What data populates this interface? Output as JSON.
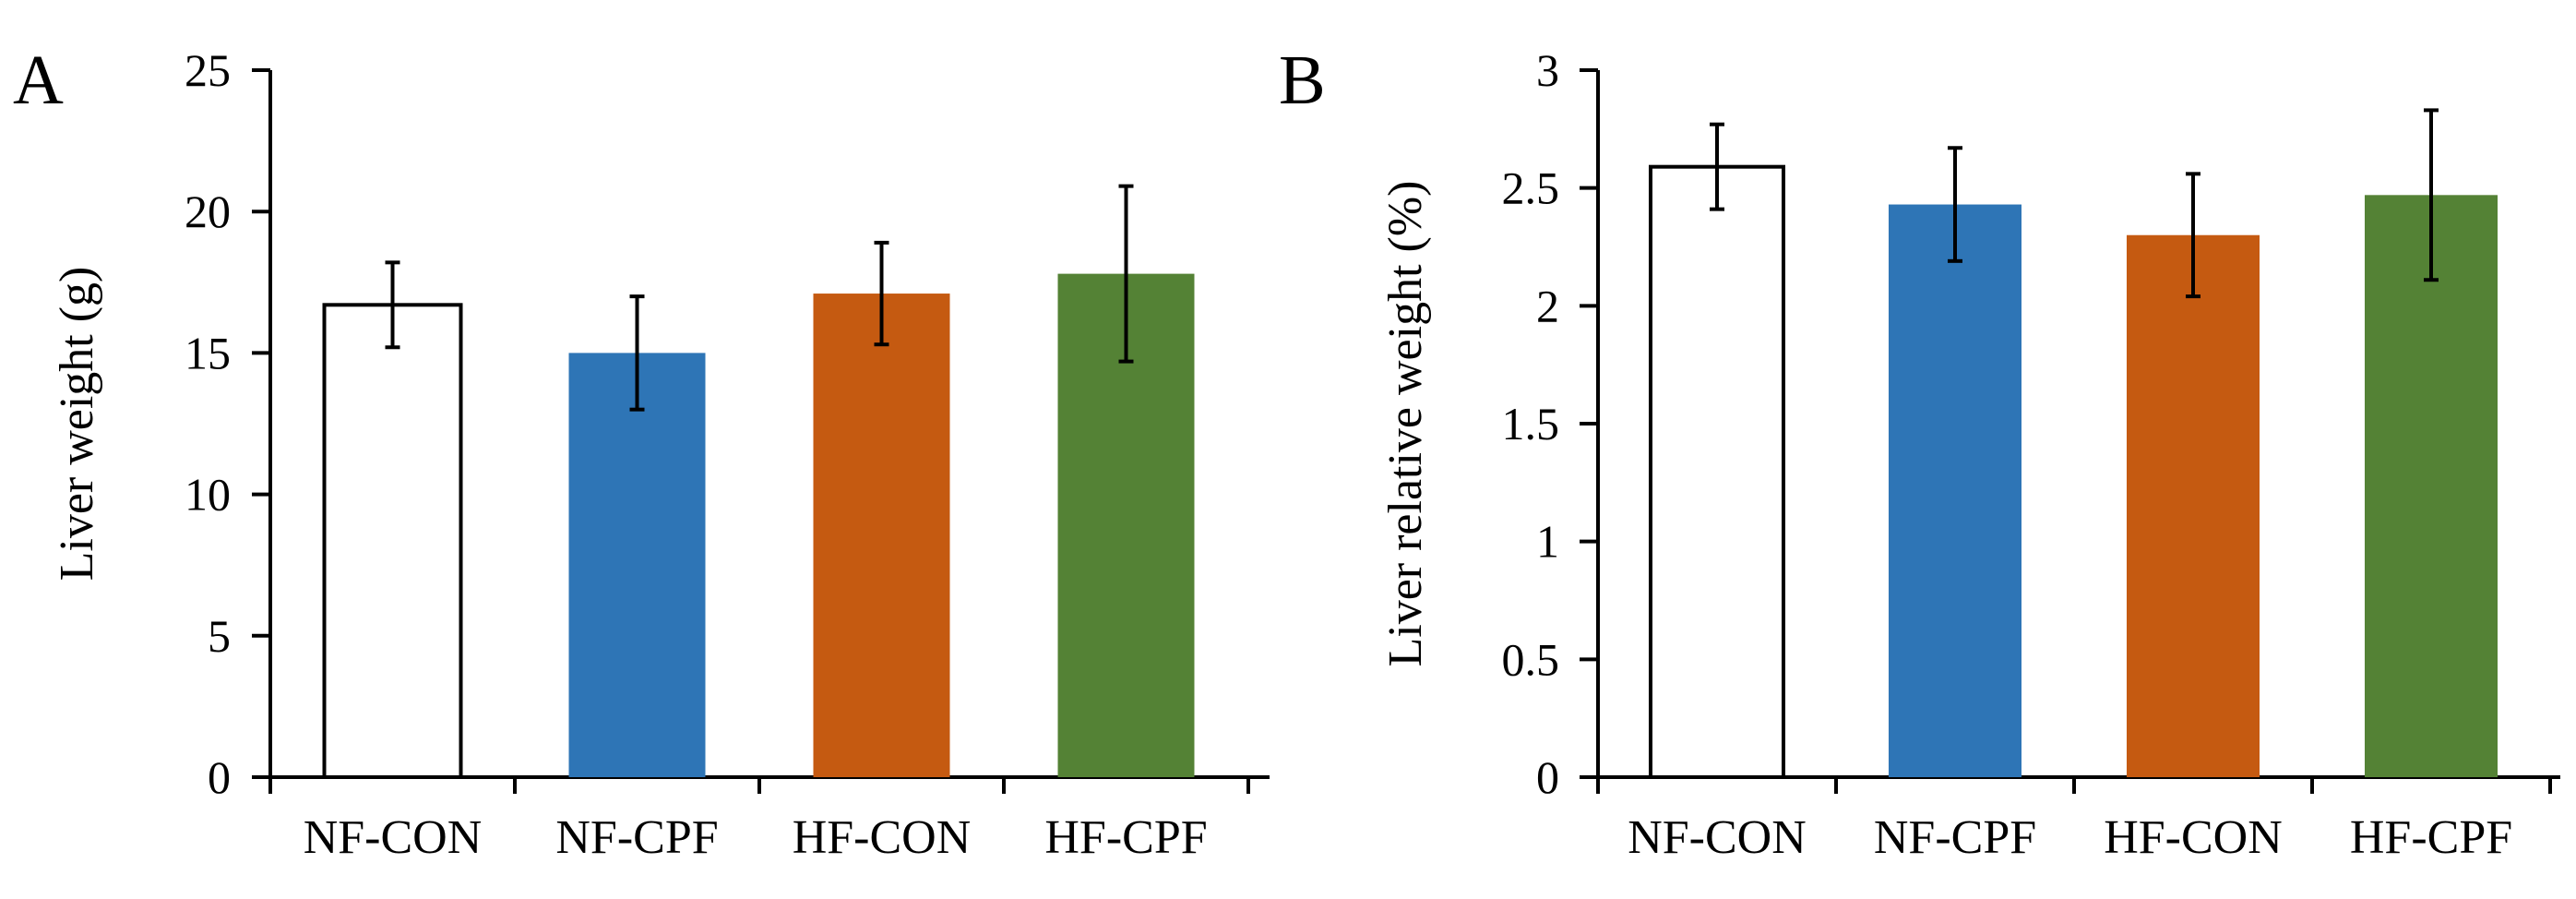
{
  "colors": {
    "NF-CON": "#ffffff",
    "NF-CPF": "#2e75b6",
    "HF-CON": "#c55a11",
    "HF-CPF": "#548235",
    "axis": "#000000"
  },
  "chart_data": [
    {
      "panel": "A",
      "type": "bar",
      "title": "",
      "xlabel": "",
      "ylabel": "Liver weight (g)",
      "ylim": [
        0,
        25
      ],
      "yticks": [
        "0",
        "5",
        "10",
        "15",
        "20",
        "25"
      ],
      "ytick_values": [
        0,
        5,
        10,
        15,
        20,
        25
      ],
      "categories": [
        "NF-CON",
        "NF-CPF",
        "HF-CON",
        "HF-CPF"
      ],
      "values": [
        16.7,
        15.0,
        17.1,
        17.8
      ],
      "errors": [
        1.5,
        2.0,
        1.8,
        3.1
      ],
      "grid": false
    },
    {
      "panel": "B",
      "type": "bar",
      "title": "",
      "xlabel": "",
      "ylabel": "Liver relative weight (%)",
      "ylim": [
        0,
        3
      ],
      "yticks": [
        "0",
        "0.5",
        "1",
        "1.5",
        "2",
        "2.5",
        "3"
      ],
      "ytick_values": [
        0,
        0.5,
        1,
        1.5,
        2,
        2.5,
        3
      ],
      "categories": [
        "NF-CON",
        "NF-CPF",
        "HF-CON",
        "HF-CPF"
      ],
      "values": [
        2.59,
        2.43,
        2.3,
        2.47
      ],
      "errors": [
        0.18,
        0.24,
        0.26,
        0.36
      ],
      "grid": false
    }
  ]
}
